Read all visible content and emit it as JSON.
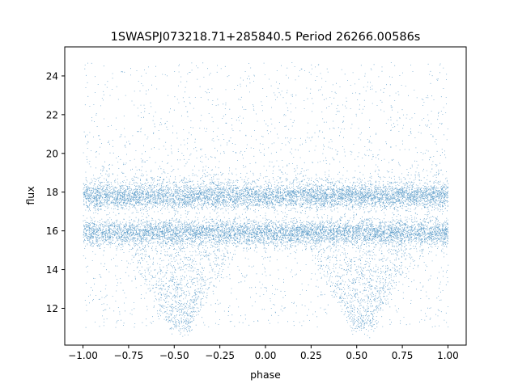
{
  "chart_data": {
    "type": "scatter",
    "title": "1SWASPJ073218.71+285840.5 Period 26266.00586s",
    "xlabel": "phase",
    "ylabel": "flux",
    "xlim": [
      -1.1,
      1.1
    ],
    "ylim": [
      10.1,
      25.5
    ],
    "x_ticks": [
      -1.0,
      -0.75,
      -0.5,
      -0.25,
      0.0,
      0.25,
      0.5,
      0.75,
      1.0
    ],
    "x_tick_labels": [
      "−1.00",
      "−0.75",
      "−0.50",
      "−0.25",
      "0.00",
      "0.25",
      "0.50",
      "0.75",
      "1.00"
    ],
    "y_ticks": [
      12,
      14,
      16,
      18,
      20,
      22,
      24
    ],
    "y_tick_labels": [
      "12",
      "14",
      "16",
      "18",
      "20",
      "22",
      "24"
    ],
    "grid": false,
    "legend": "none",
    "point_color": "#1f77b4",
    "series": [
      {
        "x_range": [
          -1.0,
          1.0
        ],
        "bands": [
          {
            "center": 17.8,
            "spread": 0.35
          },
          {
            "center": 15.9,
            "spread": 0.35
          }
        ],
        "dips": [
          {
            "phase": -0.47,
            "min_flux": 11.0
          },
          {
            "phase": 0.53,
            "min_flux": 11.0
          }
        ],
        "outlier_range": [
          18.5,
          24.7
        ]
      }
    ]
  }
}
